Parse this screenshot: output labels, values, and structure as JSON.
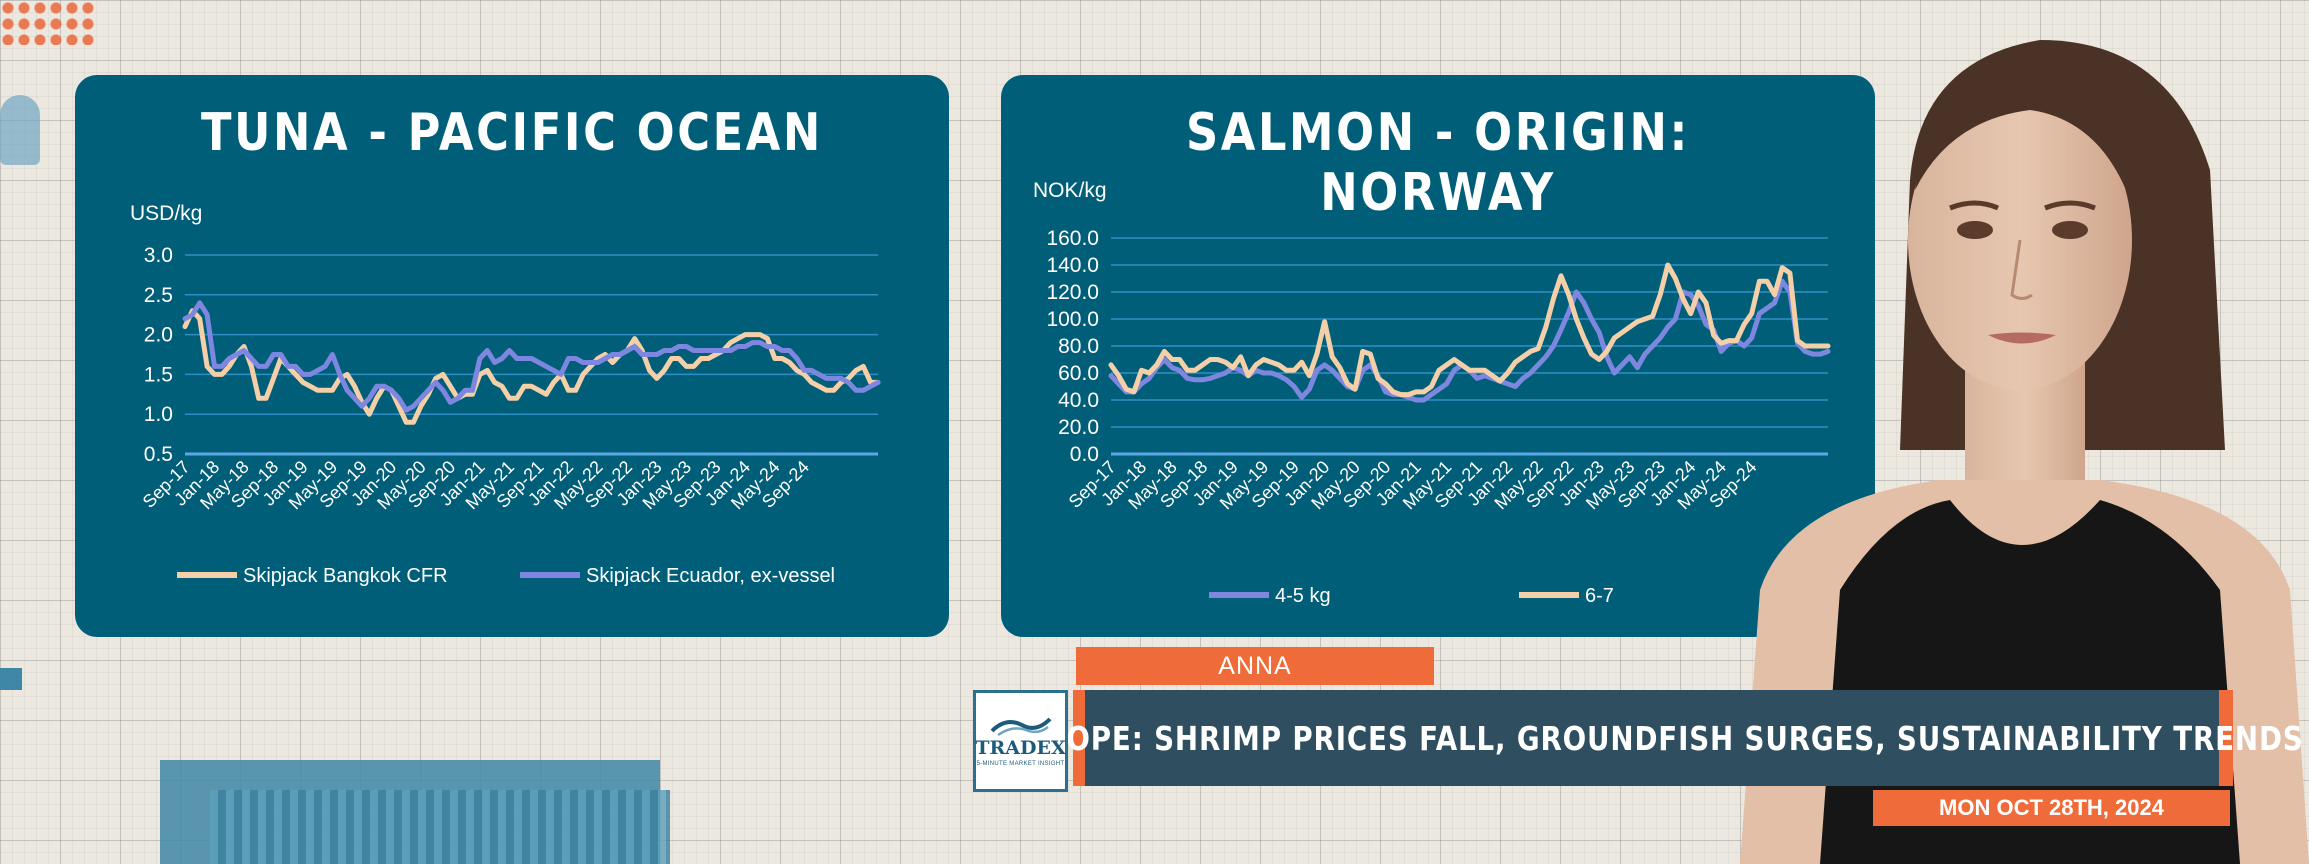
{
  "colors": {
    "panel": "#005e78",
    "accent": "#ef6c3a",
    "bangkok": "#f4cfa8",
    "ecuador": "#7e87df",
    "salmon45": "#7e87df",
    "salmon67": "#f4cfa8",
    "headline_bg": "#2f4f60"
  },
  "lower_third": {
    "name": "ANNA",
    "logo_name": "TRADEX",
    "logo_sub": "5-MINUTE MARKET INSIGHT",
    "headline": "EUROPE: SHRIMP PRICES FALL, GROUNDFISH SURGES, SUSTAINABILITY TRENDS",
    "date": "MON OCT 28TH, 2024"
  },
  "chart_data": [
    {
      "type": "line",
      "title": "TUNA - PACIFIC OCEAN",
      "ylabel": "USD/kg",
      "ylim": [
        0.5,
        3.0
      ],
      "yticks": [
        0.5,
        1.0,
        1.5,
        2.0,
        2.5,
        3.0
      ],
      "ytick_labels": [
        "0.5",
        "1.0",
        "1.5",
        "2.0",
        "2.5",
        "3.0"
      ],
      "grid": true,
      "legend": "bottom",
      "x_start": "Sep-17",
      "xtick_labels": [
        "Sep-17",
        "Jan-18",
        "May-18",
        "Sep-18",
        "Jan-19",
        "May-19",
        "Sep-19",
        "Jan-20",
        "May-20",
        "Sep-20",
        "Jan-21",
        "May-21",
        "Sep-21",
        "Jan-22",
        "May-22",
        "Sep-22",
        "Jan-23",
        "May-23",
        "Sep-23",
        "Jan-24",
        "May-24",
        "Sep-24"
      ],
      "series": [
        {
          "name": "Skipjack Bangkok CFR",
          "values": [
            2.1,
            2.3,
            2.2,
            1.6,
            1.5,
            1.5,
            1.6,
            1.75,
            1.85,
            1.6,
            1.2,
            1.2,
            1.45,
            1.7,
            1.6,
            1.5,
            1.4,
            1.35,
            1.3,
            1.3,
            1.3,
            1.45,
            1.5,
            1.35,
            1.15,
            1.0,
            1.2,
            1.35,
            1.3,
            1.1,
            0.9,
            0.9,
            1.1,
            1.25,
            1.45,
            1.5,
            1.35,
            1.2,
            1.25,
            1.25,
            1.5,
            1.55,
            1.4,
            1.35,
            1.2,
            1.2,
            1.35,
            1.35,
            1.3,
            1.25,
            1.4,
            1.5,
            1.3,
            1.3,
            1.5,
            1.6,
            1.7,
            1.75,
            1.65,
            1.75,
            1.8,
            1.95,
            1.8,
            1.55,
            1.45,
            1.55,
            1.7,
            1.7,
            1.6,
            1.6,
            1.7,
            1.7,
            1.75,
            1.8,
            1.9,
            1.95,
            2.0,
            2.0,
            2.0,
            1.95,
            1.7,
            1.7,
            1.65,
            1.55,
            1.5,
            1.4,
            1.35,
            1.3,
            1.3,
            1.4,
            1.45,
            1.55,
            1.6,
            1.4,
            1.4
          ]
        },
        {
          "name": "Skipjack Ecuador, ex-vessel",
          "values": [
            2.2,
            2.25,
            2.4,
            2.25,
            1.6,
            1.6,
            1.7,
            1.75,
            1.8,
            1.7,
            1.6,
            1.6,
            1.75,
            1.75,
            1.6,
            1.6,
            1.5,
            1.5,
            1.55,
            1.6,
            1.75,
            1.5,
            1.3,
            1.2,
            1.1,
            1.2,
            1.35,
            1.35,
            1.3,
            1.2,
            1.05,
            1.1,
            1.2,
            1.3,
            1.4,
            1.3,
            1.15,
            1.2,
            1.3,
            1.3,
            1.7,
            1.8,
            1.65,
            1.7,
            1.8,
            1.7,
            1.7,
            1.7,
            1.65,
            1.6,
            1.55,
            1.5,
            1.7,
            1.7,
            1.65,
            1.65,
            1.65,
            1.7,
            1.75,
            1.75,
            1.8,
            1.85,
            1.75,
            1.75,
            1.75,
            1.8,
            1.8,
            1.85,
            1.85,
            1.8,
            1.8,
            1.8,
            1.8,
            1.8,
            1.8,
            1.85,
            1.85,
            1.9,
            1.9,
            1.85,
            1.85,
            1.8,
            1.8,
            1.7,
            1.55,
            1.55,
            1.5,
            1.45,
            1.45,
            1.45,
            1.4,
            1.3,
            1.3,
            1.35,
            1.4
          ]
        }
      ]
    },
    {
      "type": "line",
      "title": "SALMON - ORIGIN: NORWAY",
      "ylabel": "NOK/kg",
      "ylim": [
        0,
        160
      ],
      "yticks": [
        0,
        20,
        40,
        60,
        80,
        100,
        120,
        140,
        160
      ],
      "ytick_labels": [
        "0.0",
        "20.0",
        "40.0",
        "60.0",
        "80.0",
        "100.0",
        "120.0",
        "140.0",
        "160.0"
      ],
      "grid": true,
      "legend": "bottom",
      "x_start": "Sep-17",
      "xtick_labels": [
        "Sep-17",
        "Jan-18",
        "May-18",
        "Sep-18",
        "Jan-19",
        "May-19",
        "Sep-19",
        "Jan-20",
        "May-20",
        "Sep-20",
        "Jan-21",
        "May-21",
        "Sep-21",
        "Jan-22",
        "May-22",
        "Sep-22",
        "Jan-23",
        "May-23",
        "Sep-23",
        "Jan-24",
        "May-24",
        "Sep-24"
      ],
      "series": [
        {
          "name": "4-5 kg",
          "values": [
            58,
            52,
            46,
            46,
            52,
            56,
            64,
            70,
            64,
            62,
            56,
            55,
            55,
            56,
            58,
            60,
            64,
            62,
            58,
            62,
            60,
            60,
            58,
            55,
            50,
            42,
            48,
            62,
            66,
            62,
            56,
            50,
            48,
            62,
            66,
            58,
            46,
            44,
            44,
            42,
            40,
            40,
            44,
            48,
            52,
            62,
            66,
            62,
            56,
            58,
            56,
            54,
            52,
            50,
            56,
            60,
            66,
            72,
            80,
            92,
            105,
            120,
            112,
            100,
            90,
            72,
            60,
            66,
            72,
            64,
            74,
            80,
            86,
            94,
            100,
            120,
            118,
            110,
            96,
            92,
            76,
            82,
            84,
            80,
            86,
            104,
            108,
            112,
            128,
            120,
            82,
            76,
            74,
            74,
            76
          ]
        },
        {
          "name": "6-7",
          "values": [
            66,
            58,
            48,
            46,
            62,
            60,
            66,
            76,
            70,
            70,
            62,
            62,
            66,
            70,
            70,
            68,
            64,
            72,
            58,
            66,
            70,
            68,
            66,
            62,
            62,
            68,
            58,
            74,
            98,
            72,
            64,
            52,
            48,
            76,
            74,
            56,
            52,
            46,
            44,
            44,
            46,
            46,
            50,
            62,
            66,
            70,
            66,
            62,
            62,
            62,
            58,
            54,
            60,
            68,
            72,
            76,
            78,
            94,
            115,
            132,
            118,
            100,
            86,
            74,
            70,
            76,
            86,
            90,
            94,
            98,
            100,
            102,
            118,
            140,
            130,
            115,
            104,
            120,
            112,
            88,
            82,
            84,
            84,
            96,
            104,
            128,
            128,
            118,
            138,
            134,
            84,
            80,
            80,
            80,
            80
          ]
        }
      ]
    }
  ]
}
